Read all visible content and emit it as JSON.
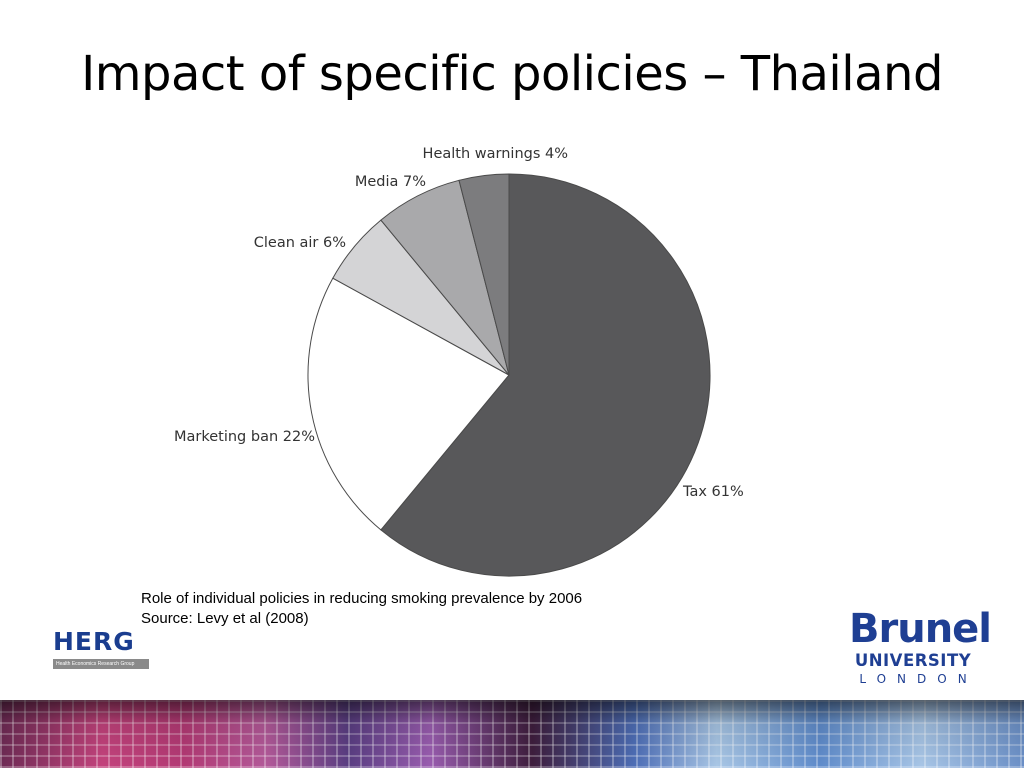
{
  "slide": {
    "title": "Impact of specific policies – Thailand",
    "caption_line1": "Role of individual policies in reducing smoking prevalence by 2006",
    "caption_line2": "Source: Levy et al (2008)"
  },
  "logos": {
    "herg_text": "HERG",
    "herg_subtitle": "Health Economics Research Group",
    "brunel_name": "Brunel",
    "brunel_university": "UNIVERSITY",
    "brunel_city": "LONDON"
  },
  "chart_data": {
    "type": "pie",
    "title": "",
    "slices": [
      {
        "label": "Tax 61%",
        "category": "Tax",
        "value": 61,
        "color": "#58585a"
      },
      {
        "label": "Marketing ban 22%",
        "category": "Marketing ban",
        "value": 22,
        "color": "#ffffff"
      },
      {
        "label": "Clean air 6%",
        "category": "Clean air",
        "value": 6,
        "color": "#d4d4d6"
      },
      {
        "label": "Media 7%",
        "category": "Media",
        "value": 7,
        "color": "#a9a9ab"
      },
      {
        "label": "Health warnings 4%",
        "category": "Health warnings",
        "value": 4,
        "color": "#7c7c7e"
      }
    ],
    "start": "12 o'clock",
    "direction": "clockwise",
    "legend": "none"
  }
}
